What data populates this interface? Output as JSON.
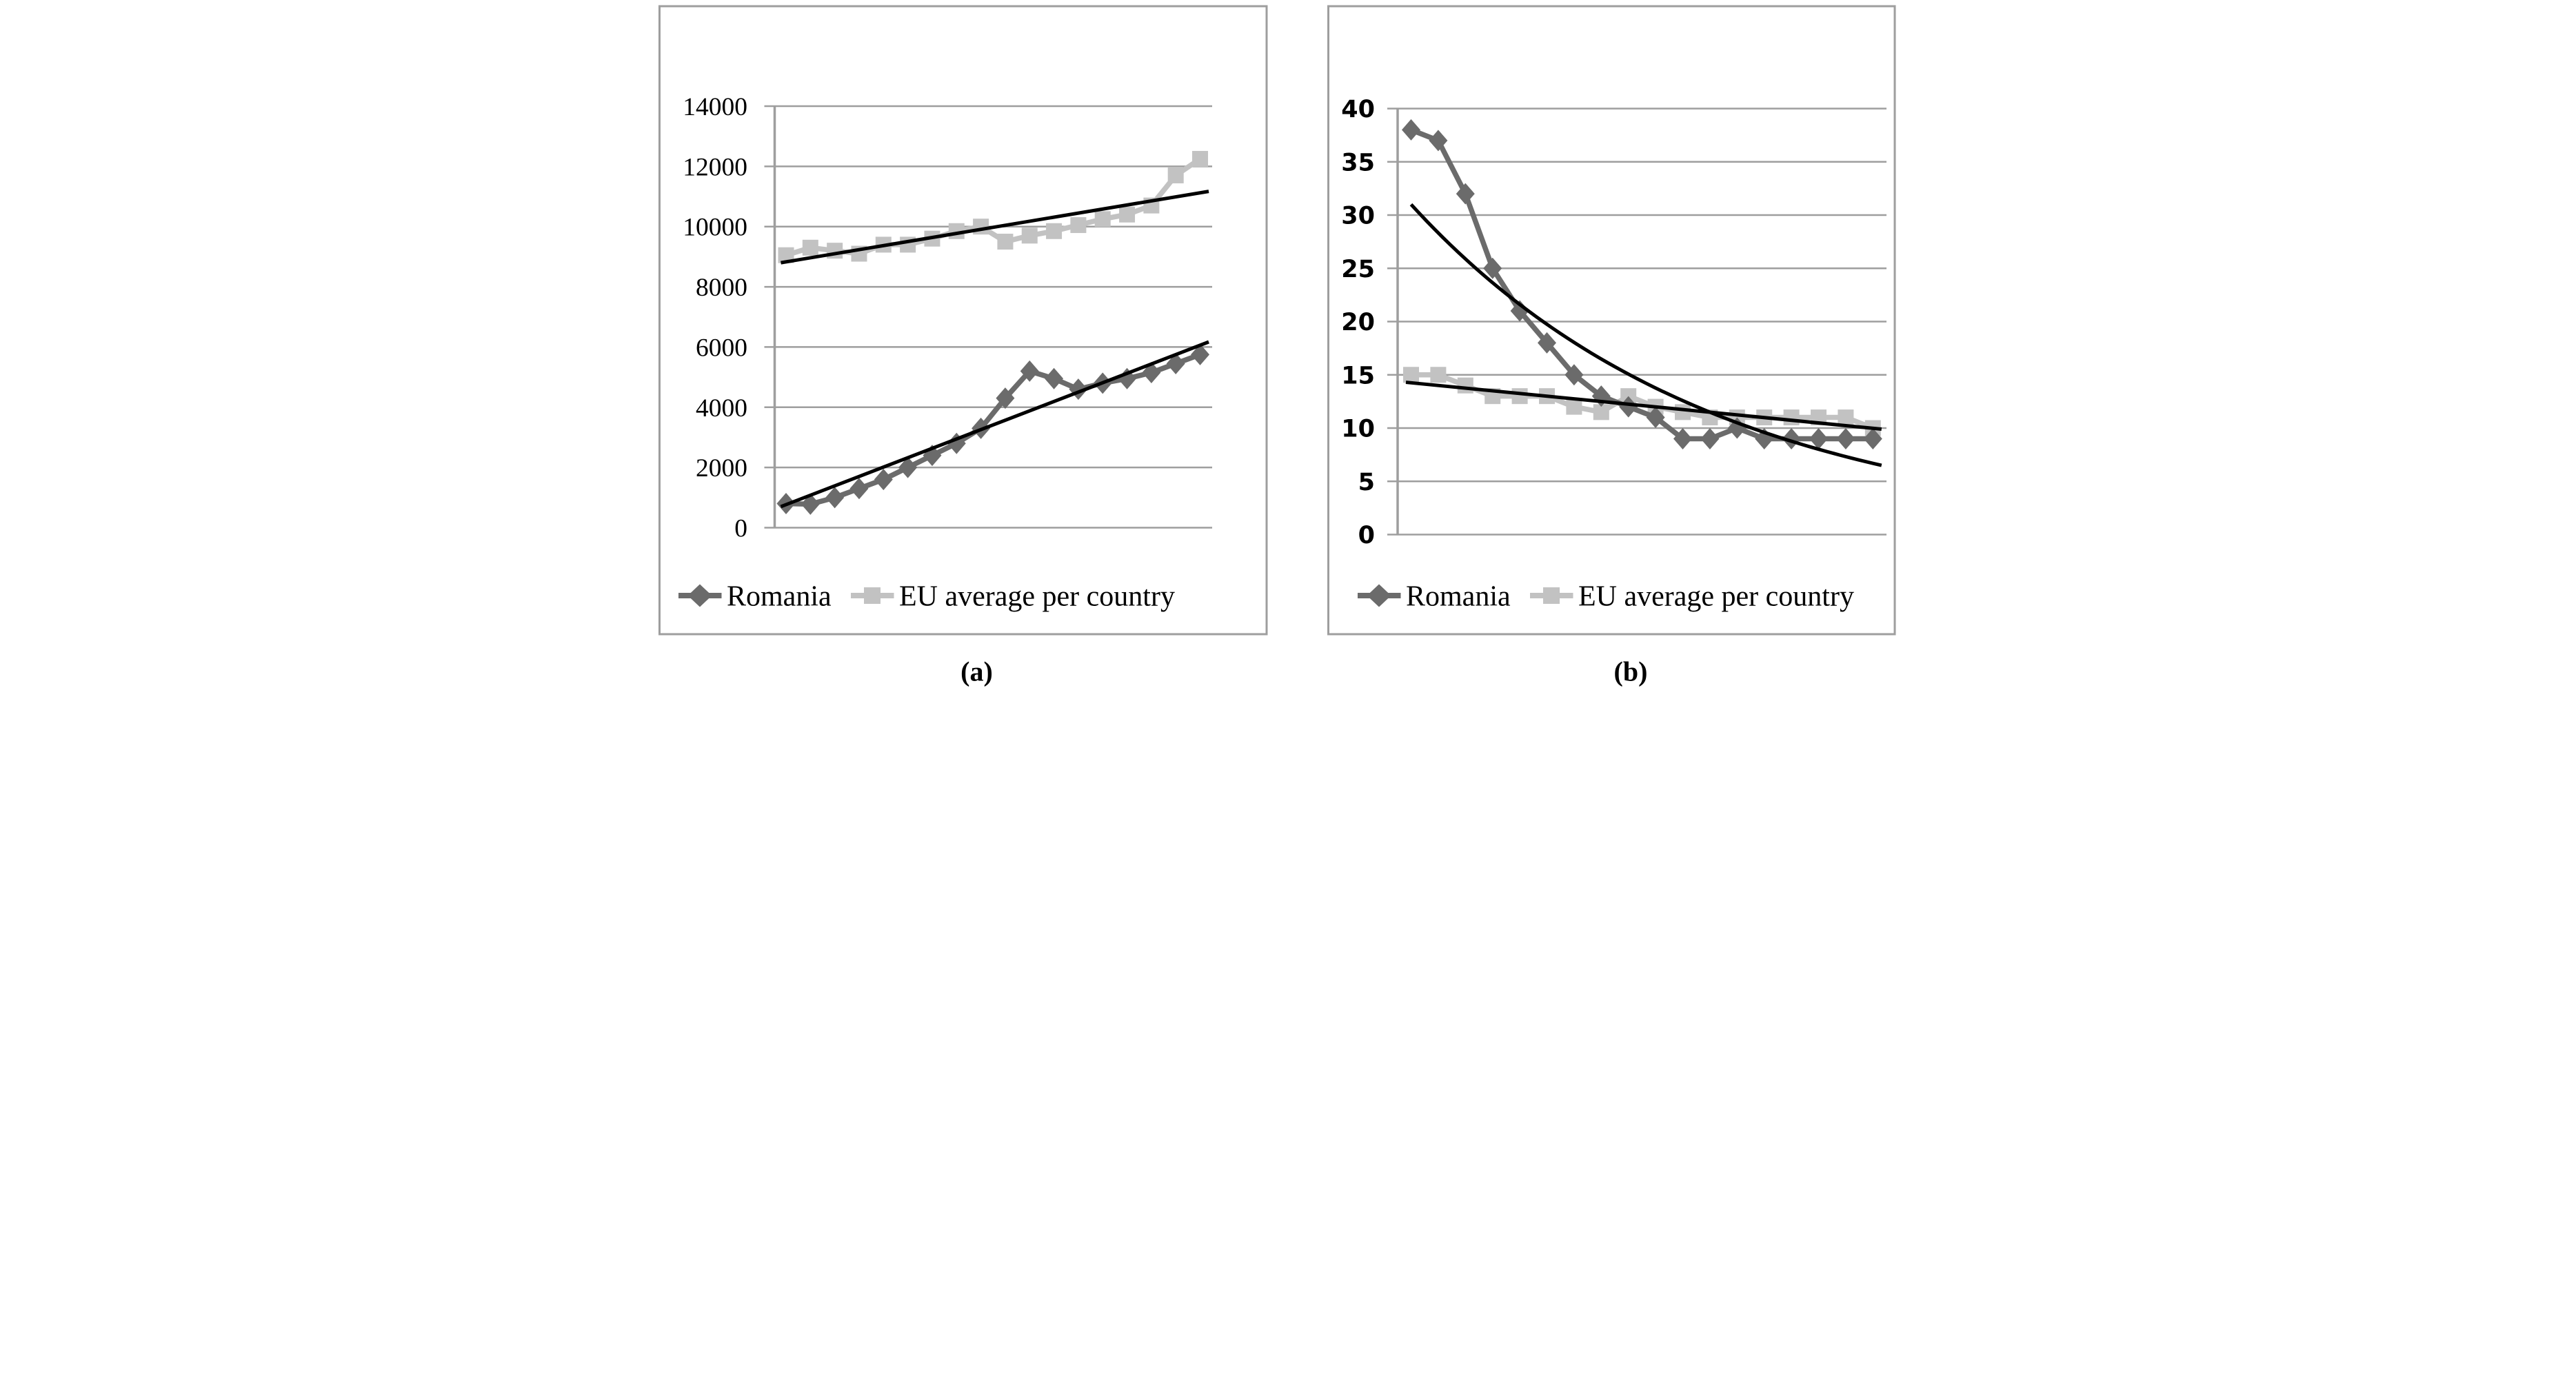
{
  "figure": {
    "background": "#ffffff",
    "captions": {
      "a": "(a)",
      "b": "(b)"
    },
    "legend": {
      "romania_label": "Romania",
      "eu_label": "EU average per country"
    },
    "colors": {
      "romania_series": "#6b6b6b",
      "eu_series": "#c2c2c2",
      "trendline": "#000000",
      "gridline": "#9e9e9e",
      "chart_border": "#9e9e9e",
      "axis_text": "#000000"
    },
    "icons": {
      "romania_marker": "diamond-marker-icon",
      "eu_marker": "square-marker-icon"
    }
  },
  "chart_data": [
    {
      "panel": "a",
      "type": "line",
      "title": "",
      "grid": true,
      "legend_position": "bottom",
      "x_tick_labels_visible": false,
      "ylim": [
        0,
        14000
      ],
      "ytick_step": 2000,
      "ytick_labels": [
        "14000",
        "12000",
        "10000",
        "8000",
        "6000",
        "4000",
        "2000",
        "0"
      ],
      "series": [
        {
          "name": "Romania",
          "marker": "diamond",
          "values": [
            800,
            780,
            1000,
            1300,
            1600,
            2000,
            2400,
            2800,
            3300,
            4300,
            5200,
            4950,
            4600,
            4800,
            4950,
            5150,
            5450,
            5750
          ]
        },
        {
          "name": "EU average per country",
          "marker": "square",
          "values": [
            9050,
            9300,
            9200,
            9100,
            9400,
            9400,
            9600,
            9850,
            10000,
            9500,
            9700,
            9850,
            10050,
            10250,
            10400,
            10700,
            11700,
            12250
          ]
        }
      ],
      "trendlines": [
        {
          "series": "Romania",
          "type": "linear",
          "start_value": 700,
          "end_value": 6170
        },
        {
          "series": "EU average per country",
          "type": "linear",
          "start_value": 8800,
          "end_value": 11170
        }
      ]
    },
    {
      "panel": "b",
      "type": "line",
      "title": "",
      "grid": true,
      "legend_position": "bottom",
      "x_tick_labels_visible": false,
      "ylim": [
        0,
        40
      ],
      "ytick_step": 5,
      "ytick_labels": [
        "40",
        "35",
        "30",
        "25",
        "20",
        "15",
        "10",
        "5",
        "0"
      ],
      "series": [
        {
          "name": "Romania",
          "marker": "diamond",
          "values": [
            38,
            37,
            32,
            25,
            21,
            18,
            15,
            13,
            12,
            11,
            9,
            9,
            10,
            9,
            9,
            9,
            9,
            9
          ]
        },
        {
          "name": "EU average per country",
          "marker": "square",
          "values": [
            15,
            15,
            14,
            13,
            13,
            13,
            12,
            11.5,
            13,
            12,
            11.5,
            11,
            11,
            11,
            11,
            11,
            11,
            10
          ]
        }
      ],
      "trendlines": [
        {
          "series": "Romania",
          "type": "exponential",
          "start_value": 31,
          "end_value": 6.5
        },
        {
          "series": "EU average per country",
          "type": "linear",
          "start_value": 14.3,
          "end_value": 9.9
        }
      ]
    }
  ]
}
